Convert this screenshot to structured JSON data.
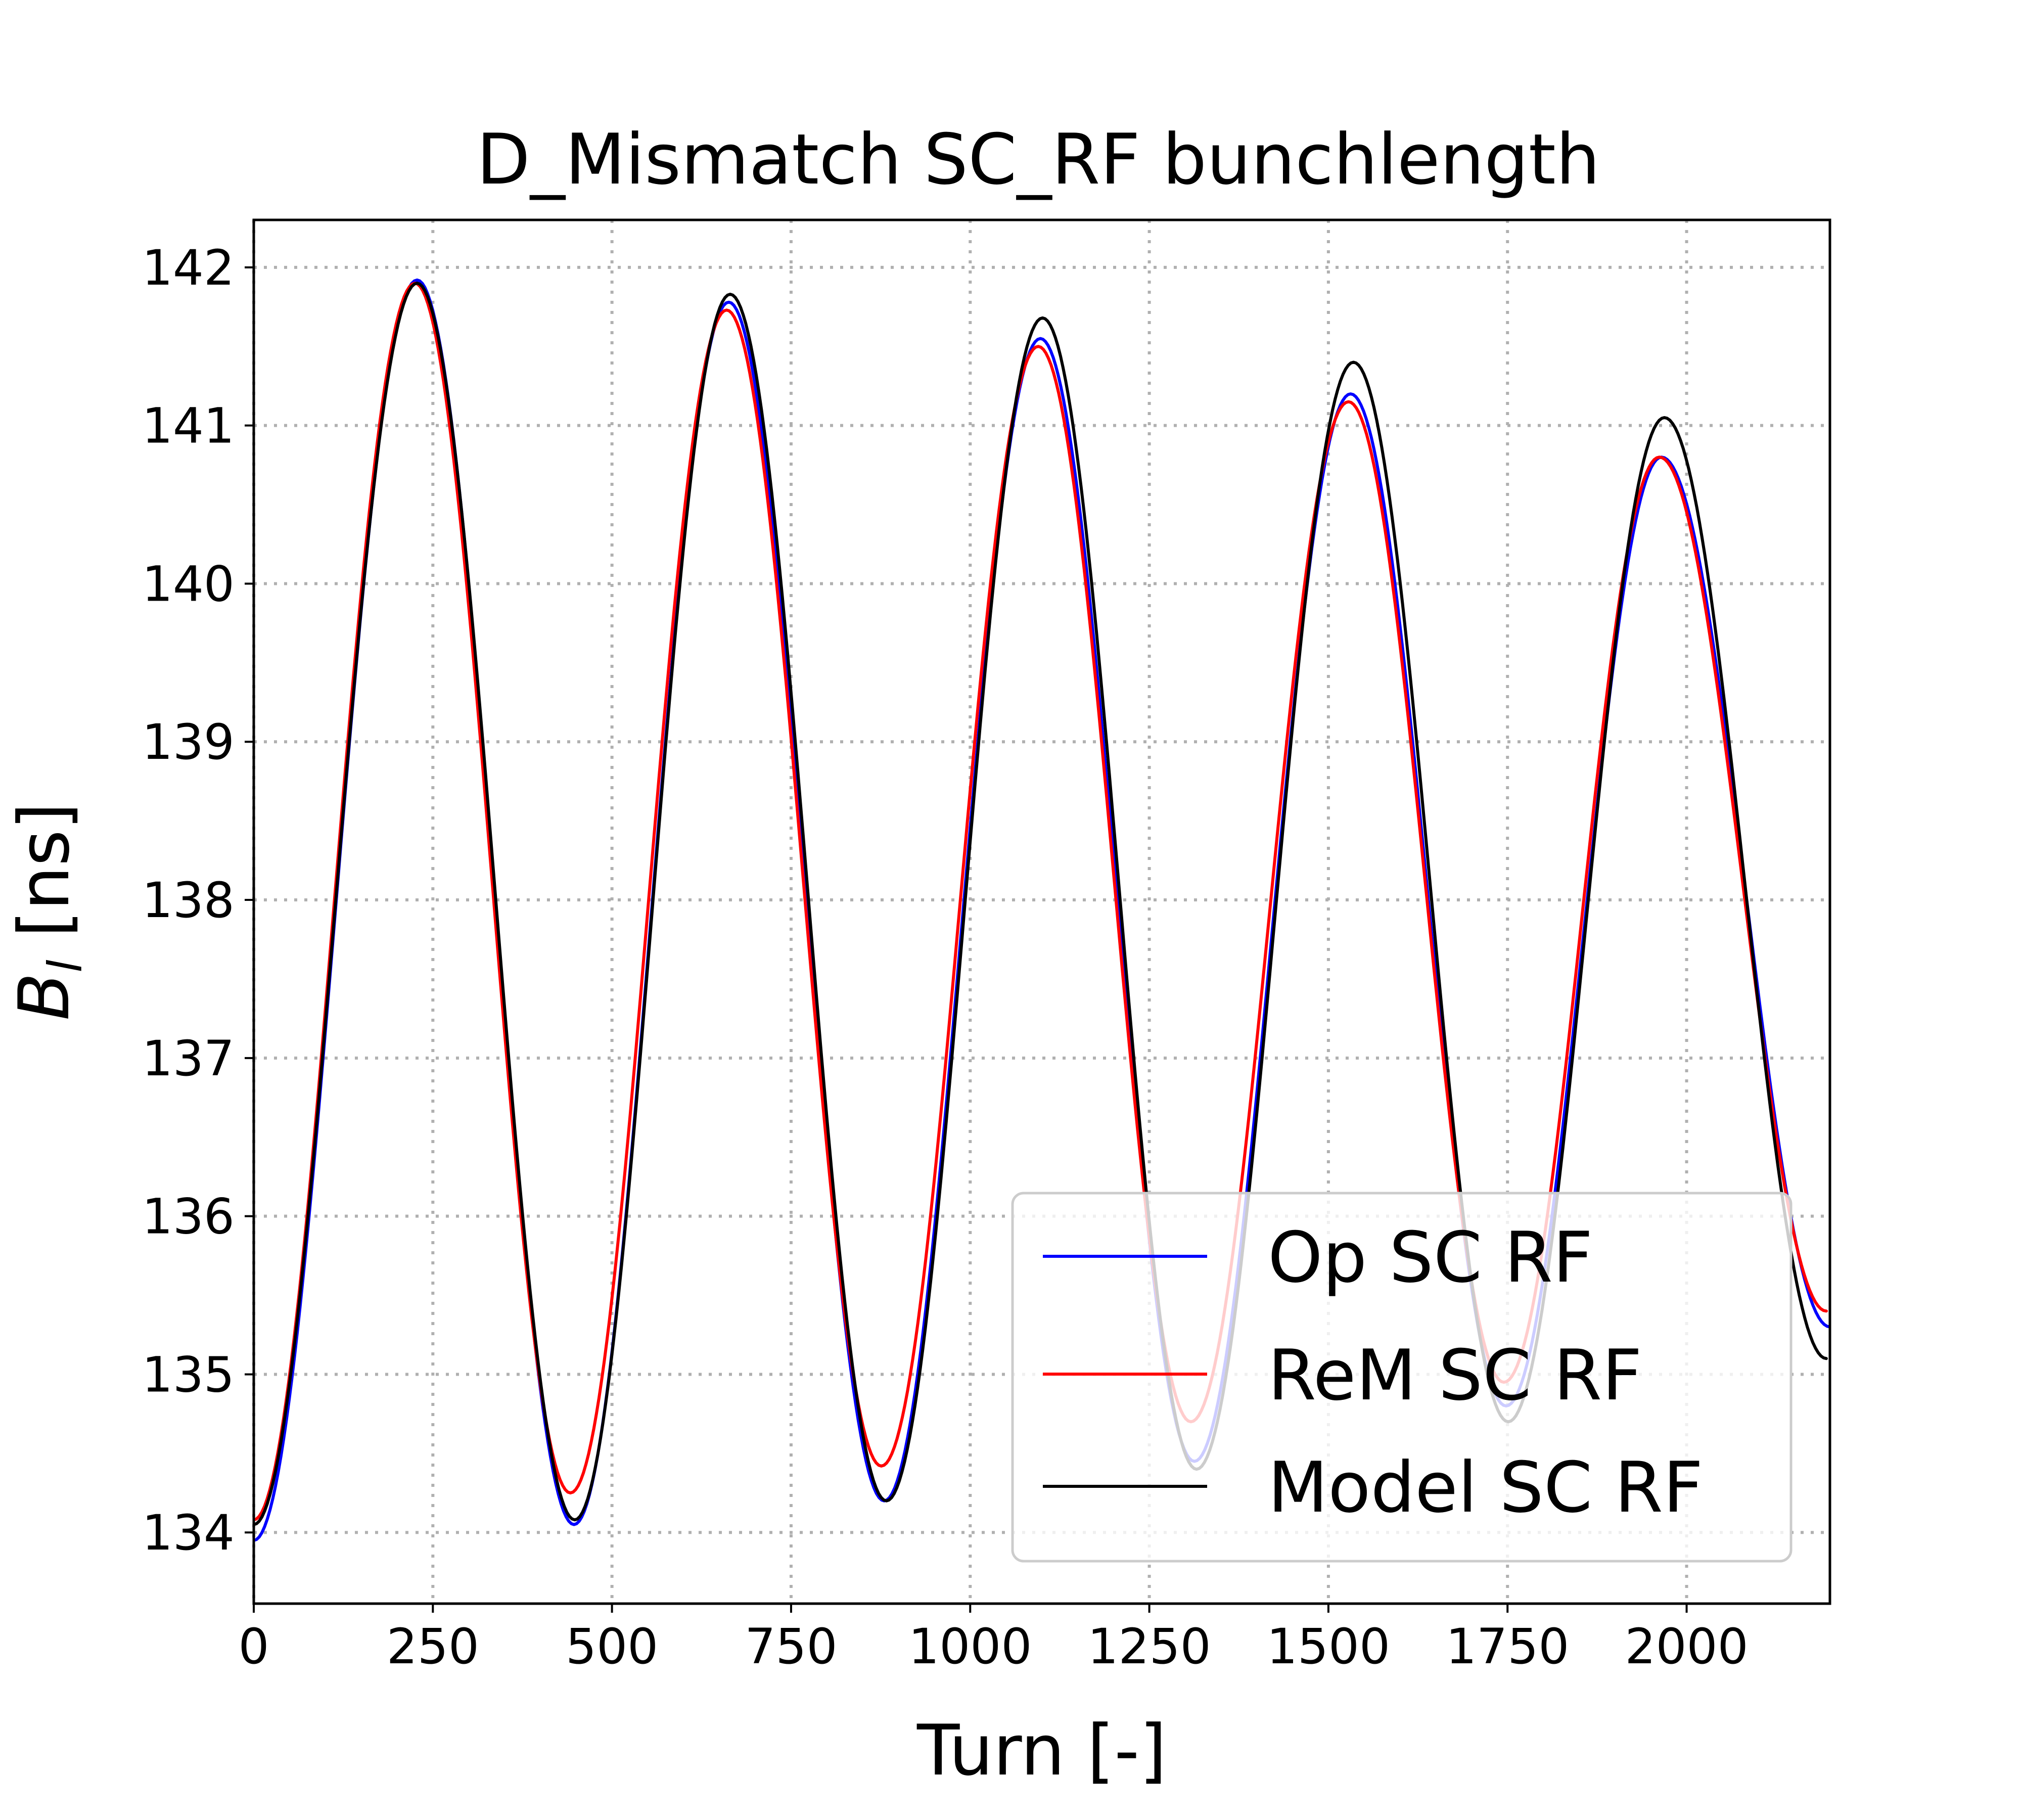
{
  "chart_data": {
    "type": "line",
    "title": "D_Mismatch SC_RF bunchlength",
    "xlabel": "Turn [-]",
    "ylabel_main": "B",
    "ylabel_sub": "l",
    "ylabel_unit": " [ns]",
    "xlim": [
      0,
      2200
    ],
    "ylim": [
      133.55,
      142.3
    ],
    "xticks": [
      0,
      250,
      500,
      750,
      1000,
      1250,
      1500,
      1750,
      2000
    ],
    "yticks": [
      134,
      135,
      136,
      137,
      138,
      139,
      140,
      141,
      142
    ],
    "grid": true,
    "legend_position": "lower right",
    "series": [
      {
        "name": "Op SC RF",
        "color": "#0000ff",
        "extrema": [
          [
            0,
            133.95
          ],
          [
            228,
            141.92
          ],
          [
            447,
            134.05
          ],
          [
            663,
            141.78
          ],
          [
            880,
            134.2
          ],
          [
            1098,
            141.55
          ],
          [
            1313,
            134.45
          ],
          [
            1531,
            141.2
          ],
          [
            1748,
            134.8
          ],
          [
            1965,
            140.8
          ],
          [
            2200,
            135.3
          ]
        ]
      },
      {
        "name": "ReM SC RF",
        "color": "#ff0000",
        "extrema": [
          [
            0,
            134.08
          ],
          [
            225,
            141.9
          ],
          [
            442,
            134.25
          ],
          [
            660,
            141.73
          ],
          [
            876,
            134.42
          ],
          [
            1095,
            141.5
          ],
          [
            1308,
            134.7
          ],
          [
            1528,
            141.15
          ],
          [
            1745,
            134.95
          ],
          [
            1962,
            140.8
          ],
          [
            2195,
            135.4
          ]
        ]
      },
      {
        "name": "Model SC RF",
        "color": "#000000",
        "extrema": [
          [
            0,
            134.05
          ],
          [
            228,
            141.9
          ],
          [
            448,
            134.08
          ],
          [
            665,
            141.83
          ],
          [
            883,
            134.2
          ],
          [
            1101,
            141.68
          ],
          [
            1316,
            134.4
          ],
          [
            1535,
            141.4
          ],
          [
            1751,
            134.7
          ],
          [
            1969,
            141.05
          ],
          [
            2195,
            135.1
          ]
        ]
      }
    ]
  }
}
